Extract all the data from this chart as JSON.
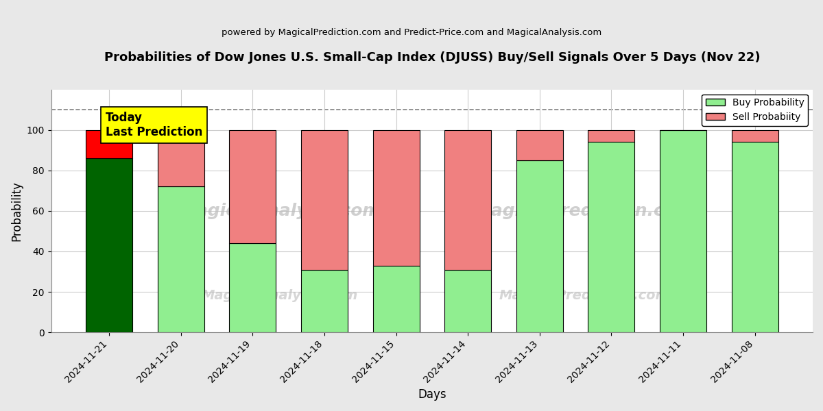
{
  "title": "Probabilities of Dow Jones U.S. Small-Cap Index (DJUSS) Buy/Sell Signals Over 5 Days (Nov 22)",
  "subtitle": "powered by MagicalPrediction.com and Predict-Price.com and MagicalAnalysis.com",
  "xlabel": "Days",
  "ylabel": "Probability",
  "categories": [
    "2024-11-21",
    "2024-11-20",
    "2024-11-19",
    "2024-11-18",
    "2024-11-15",
    "2024-11-14",
    "2024-11-13",
    "2024-11-12",
    "2024-11-11",
    "2024-11-08"
  ],
  "buy_values": [
    86,
    72,
    44,
    31,
    33,
    31,
    85,
    94,
    100,
    94
  ],
  "sell_values": [
    14,
    28,
    56,
    69,
    67,
    69,
    15,
    6,
    0,
    6
  ],
  "today_bar_buy_color": "#006400",
  "today_bar_sell_color": "#FF0000",
  "regular_bar_buy_color": "#90EE90",
  "regular_bar_sell_color": "#F08080",
  "today_label_bg": "#FFFF00",
  "today_label_text": "Today\nLast Prediction",
  "legend_buy_label": "Buy Probability",
  "legend_sell_label": "Sell Probabiity",
  "ylim": [
    0,
    120
  ],
  "yticks": [
    0,
    20,
    40,
    60,
    80,
    100
  ],
  "dashed_line_y": 110,
  "watermark_lines": [
    "MagicalAnalysis.com",
    "MagicalPrediction.com"
  ],
  "background_color": "#ffffff",
  "fig_background_color": "#e8e8e8",
  "grid_color": "#cccccc",
  "bar_edge_color": "#000000",
  "bar_width": 0.65
}
